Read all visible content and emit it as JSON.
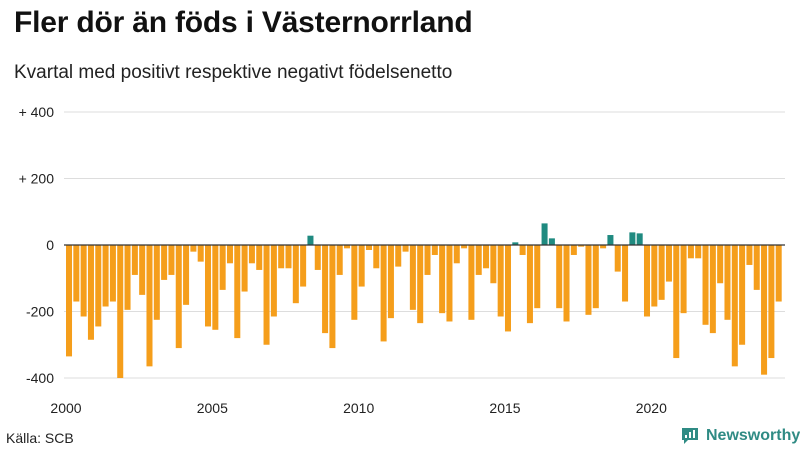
{
  "chart_data": {
    "type": "bar",
    "title": "Fler dör än föds i Västernorrland",
    "subtitle": "Kvartal med positivt respektive negativt födelsenetto",
    "source": "Källa: SCB",
    "brand": "Newsworthy",
    "xlabel": "",
    "ylabel": "",
    "ylim": [
      -420,
      400
    ],
    "y_ticks": [
      400,
      200,
      0,
      -200,
      -400
    ],
    "y_tick_labels": [
      "+ 400",
      "+ 200",
      "0",
      "-200",
      "-400"
    ],
    "x_tick_years": [
      2000,
      2005,
      2010,
      2015,
      2020
    ],
    "start_year": 2000,
    "start_quarter": 1,
    "colors": {
      "negative": "#f59e1b",
      "positive": "#1f8a80",
      "grid": "#dddddd",
      "zero": "#333333",
      "brand": "#2f8b84"
    },
    "values": [
      -335,
      -170,
      -215,
      -285,
      -245,
      -185,
      -170,
      -400,
      -195,
      -90,
      -150,
      -365,
      -225,
      -105,
      -90,
      -310,
      -180,
      -20,
      -50,
      -245,
      -255,
      -135,
      -55,
      -280,
      -140,
      -55,
      -75,
      -300,
      -215,
      -70,
      -70,
      -175,
      -125,
      28,
      -75,
      -265,
      -310,
      -90,
      -10,
      -225,
      -125,
      -15,
      -70,
      -290,
      -220,
      -65,
      -20,
      -195,
      -235,
      -90,
      -30,
      -205,
      -230,
      -55,
      -10,
      -225,
      -90,
      -70,
      -115,
      -215,
      -260,
      8,
      -30,
      -235,
      -190,
      65,
      20,
      -190,
      -230,
      -30,
      -5,
      -210,
      -190,
      -10,
      30,
      -80,
      -170,
      38,
      35,
      -215,
      -185,
      -165,
      -110,
      -340,
      -205,
      -40,
      -40,
      -240,
      -265,
      -115,
      -225,
      -365,
      -300,
      -60,
      -135,
      -390,
      -340,
      -170
    ]
  }
}
